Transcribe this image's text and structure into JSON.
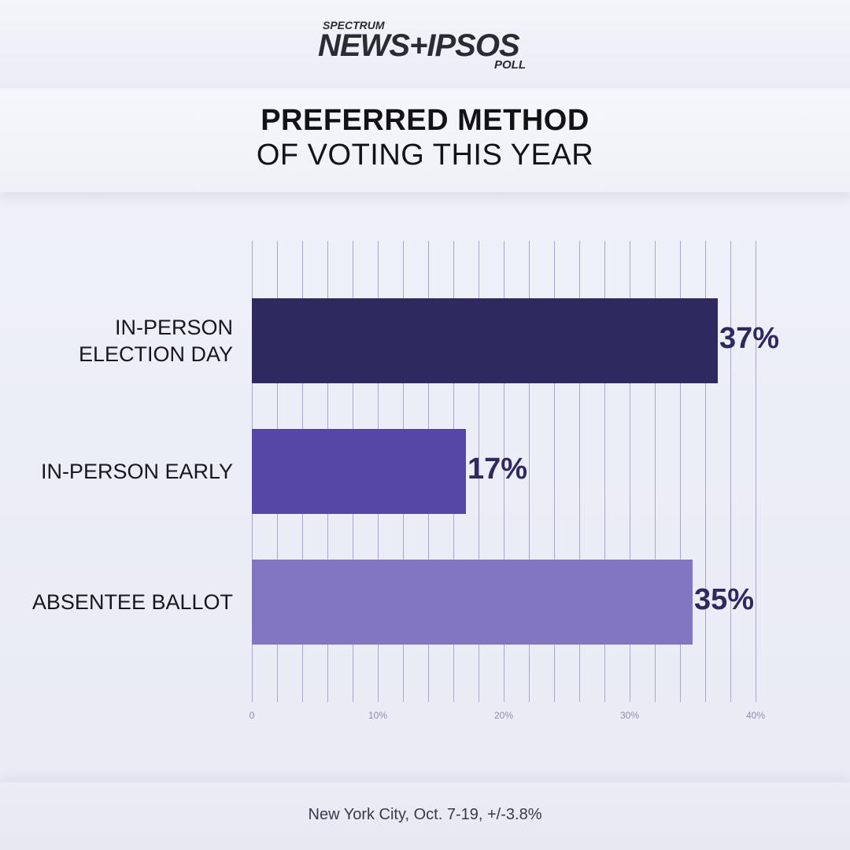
{
  "logo": {
    "top_text": "SPECTRUM",
    "main_text": "NEWS+IPSOS",
    "bottom_text": "POLL"
  },
  "title": {
    "line1": "PREFERRED METHOD",
    "line2": "OF VOTING THIS YEAR"
  },
  "chart_data": {
    "type": "bar",
    "orientation": "horizontal",
    "categories": [
      "IN-PERSON ELECTION DAY",
      "IN-PERSON EARLY",
      "ABSENTEE BALLOT"
    ],
    "category_lines": [
      [
        "IN-PERSON",
        "ELECTION DAY"
      ],
      [
        "IN-PERSON EARLY"
      ],
      [
        "ABSENTEE BALLOT"
      ]
    ],
    "values": [
      37,
      17,
      35
    ],
    "value_labels": [
      "37%",
      "17%",
      "35%"
    ],
    "bar_colors": [
      "#2e295e",
      "#5647a6",
      "#8276c2"
    ],
    "xlim": [
      0,
      40
    ],
    "x_ticks": [
      0,
      10,
      20,
      30,
      40
    ],
    "x_tick_labels": [
      "0",
      "10%",
      "20%",
      "30%",
      "40%"
    ],
    "gridline_step": 2,
    "grid": true,
    "title": "PREFERRED METHOD OF VOTING THIS YEAR"
  },
  "footer": {
    "note": "New York City, Oct. 7-19, +/-3.8%"
  }
}
